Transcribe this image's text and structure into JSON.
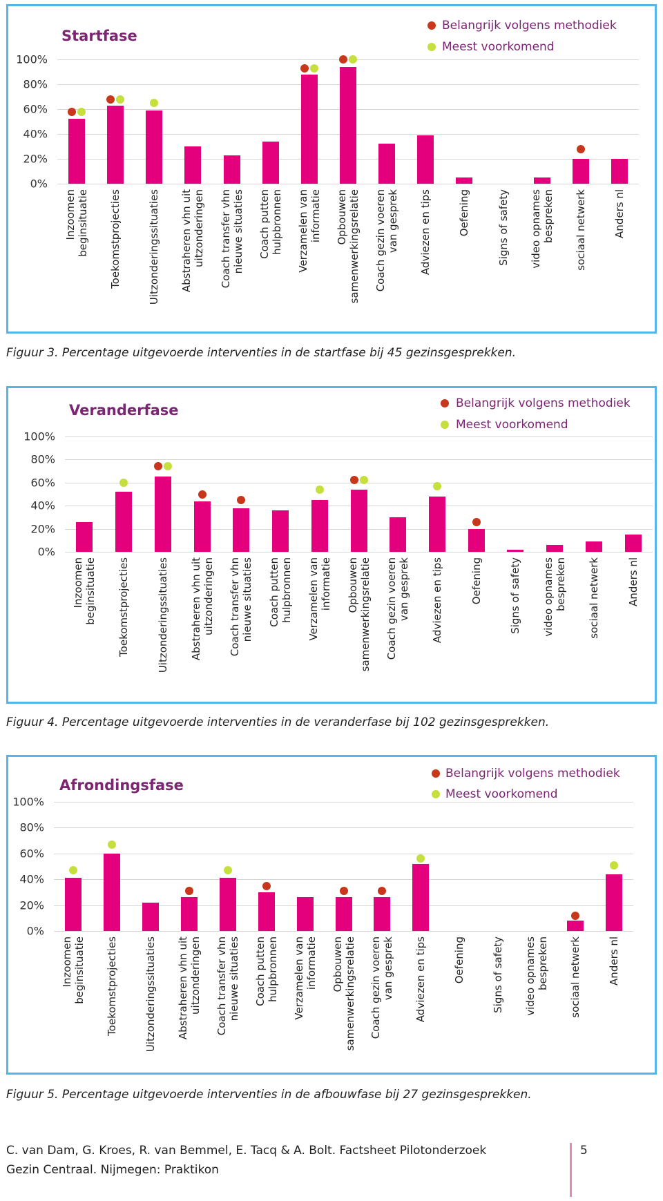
{
  "chart_data": [
    {
      "type": "bar",
      "title": "Startfase",
      "caption": "Figuur 3. Percentage uitgevoerde interventies in de startfase bij 45 gezinsgesprekken.",
      "categories": [
        "Inzoomen beginsituatie",
        "Toekomstprojecties",
        "Uitzonderingssituaties",
        "Abstraheren vhn uit uitzonderingen",
        "Coach transfer vhn nieuwe situaties",
        "Coach putten hulpbronnen",
        "Verzamelen van informatie",
        "Opbouwen samenwerkingsrelatie",
        "Coach gezin voeren van gesprek",
        "Adviezen en tips",
        "Oefening",
        "Signs of safety",
        "video opnames bespreken",
        "sociaal netwerk",
        "Anders nl"
      ],
      "values": [
        52,
        63,
        59,
        30,
        23,
        34,
        88,
        94,
        32,
        39,
        5,
        0,
        5,
        20,
        20
      ],
      "color": "#e4007c",
      "series": [
        {
          "name": "Belangrijk volgens methodiek",
          "color": "#c8361b",
          "values": [
            58,
            68,
            null,
            null,
            null,
            null,
            93,
            100,
            null,
            null,
            null,
            null,
            null,
            28,
            null
          ]
        },
        {
          "name": "Meest voorkomend",
          "color": "#c6df3c",
          "values": [
            58,
            68,
            65,
            null,
            null,
            null,
            93,
            100,
            null,
            null,
            null,
            null,
            null,
            null,
            null
          ]
        }
      ],
      "ylim": [
        0,
        100
      ],
      "yticks": [
        {
          "value": 0,
          "label": "0%"
        },
        {
          "value": 20,
          "label": "20%"
        },
        {
          "value": 40,
          "label": "40%"
        },
        {
          "value": 60,
          "label": "60%"
        },
        {
          "value": 80,
          "label": "80%"
        },
        {
          "value": 100,
          "label": "100%"
        }
      ],
      "grid": true,
      "legend": "upper right"
    },
    {
      "type": "bar",
      "title": "Veranderfase",
      "caption": "Figuur 4. Percentage uitgevoerde interventies in de veranderfase bij 102 gezinsgesprekken.",
      "categories": [
        "Inzoomen beginsituatie",
        "Toekomstprojecties",
        "Uitzonderingssituaties",
        "Abstraheren vhn uit uitzonderingen",
        "Coach transfer vhn nieuwe situaties",
        "Coach putten hulpbronnen",
        "Verzamelen van informatie",
        "Opbouwen samenwerkingsrelatie",
        "Coach gezin voeren van gesprek",
        "Adviezen en tips",
        "Oefening",
        "Signs of safety",
        "video opnames bespreken",
        "sociaal netwerk",
        "Anders nl"
      ],
      "values": [
        26,
        52,
        65,
        44,
        38,
        36,
        45,
        54,
        30,
        48,
        20,
        2,
        6,
        9,
        15
      ],
      "color": "#e4007c",
      "series": [
        {
          "name": "Belangrijk volgens methodiek",
          "color": "#c8361b",
          "values": [
            null,
            null,
            74,
            50,
            45,
            null,
            null,
            62,
            null,
            null,
            26,
            null,
            null,
            null,
            null
          ]
        },
        {
          "name": "Meest voorkomend",
          "color": "#c6df3c",
          "values": [
            null,
            60,
            74,
            null,
            null,
            null,
            54,
            62,
            null,
            57,
            null,
            null,
            null,
            null,
            null
          ]
        }
      ],
      "ylim": [
        0,
        100
      ],
      "yticks": [
        {
          "value": 0,
          "label": "0%"
        },
        {
          "value": 20,
          "label": "20%"
        },
        {
          "value": 40,
          "label": "40%"
        },
        {
          "value": 60,
          "label": "60%"
        },
        {
          "value": 80,
          "label": "80%"
        },
        {
          "value": 100,
          "label": "100%"
        }
      ],
      "grid": true,
      "legend": "upper right"
    },
    {
      "type": "bar",
      "title": "Afrondingsfase",
      "caption": "Figuur 5. Percentage uitgevoerde interventies in de afbouwfase bij 27 gezinsgesprekken.",
      "categories": [
        "Inzoomen beginsituatie",
        "Toekomstprojecties",
        "Uitzonderingssituaties",
        "Abstraheren vhn uit uitzonderingen",
        "Coach transfer vhn nieuwe situaties",
        "Coach putten hulpbronnen",
        "Verzamelen van informatie",
        "Opbouwen samenwerkingsrelatie",
        "Coach gezin voeren van gesprek",
        "Adviezen en tips",
        "Oefening",
        "Signs of safety",
        "video opnames bespreken",
        "sociaal netwerk",
        "Anders nl"
      ],
      "values": [
        41,
        60,
        22,
        26,
        41,
        30,
        26,
        26,
        26,
        52,
        0,
        0,
        0,
        8,
        44
      ],
      "color": "#e4007c",
      "series": [
        {
          "name": "Belangrijk volgens methodiek",
          "color": "#c8361b",
          "values": [
            null,
            null,
            null,
            31,
            null,
            35,
            null,
            31,
            31,
            null,
            null,
            null,
            null,
            12,
            null
          ]
        },
        {
          "name": "Meest voorkomend",
          "color": "#c6df3c",
          "values": [
            47,
            67,
            null,
            null,
            47,
            null,
            null,
            null,
            null,
            56,
            null,
            null,
            null,
            null,
            51
          ]
        }
      ],
      "ylim": [
        0,
        100
      ],
      "yticks": [
        {
          "value": 0,
          "label": "0%"
        },
        {
          "value": 20,
          "label": "20%"
        },
        {
          "value": 40,
          "label": "40%"
        },
        {
          "value": 60,
          "label": "60%"
        },
        {
          "value": 80,
          "label": "80%"
        },
        {
          "value": 100,
          "label": "100%"
        }
      ],
      "grid": true,
      "legend": "upper right"
    }
  ],
  "footer": {
    "citation": [
      "C. van Dam, G. Kroes, R. van Bemmel, E. Tacq & A. Bolt. Factsheet Pilotonderzoek",
      "Gezin Centraal. Nijmegen: Praktikon"
    ],
    "page_number": 5
  }
}
